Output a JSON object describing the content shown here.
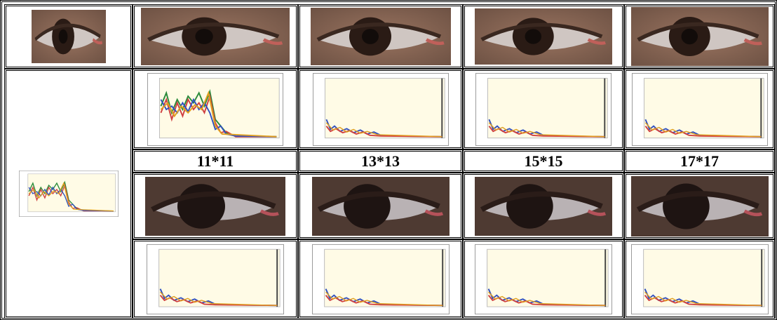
{
  "grid": {
    "labels": [
      "11*11",
      "13*13",
      "15*15",
      "17*17"
    ]
  }
}
